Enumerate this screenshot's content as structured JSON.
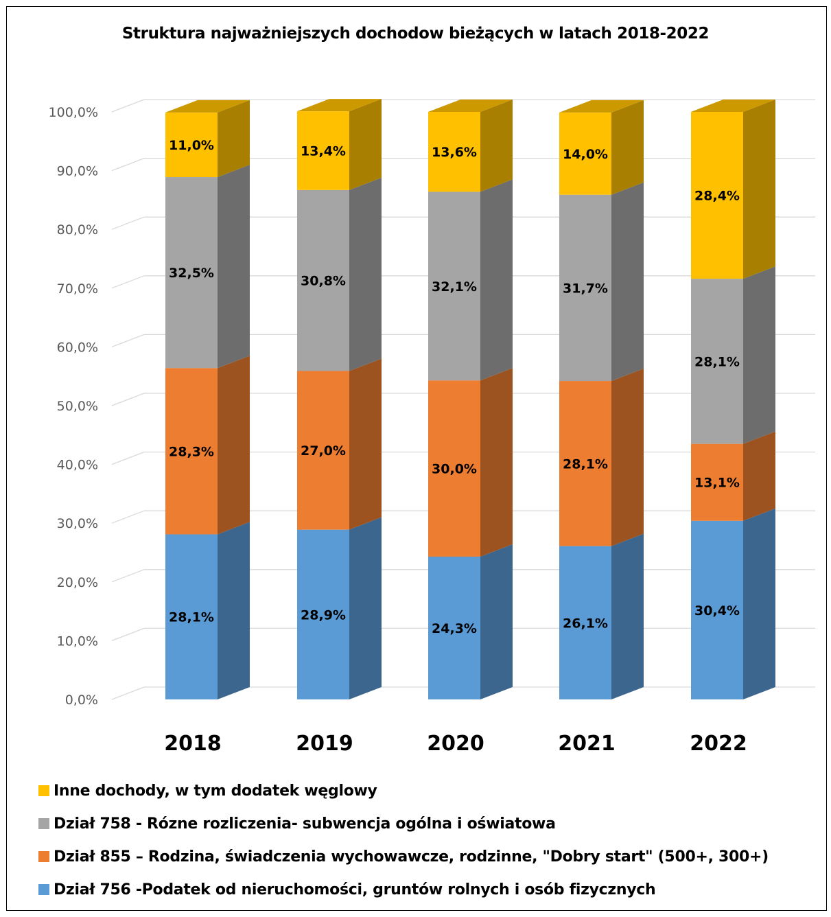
{
  "chart_data": {
    "type": "bar",
    "stacked": true,
    "three_d": true,
    "title": "Struktura najważniejszych dochodow bieżących w latach 2018-2022",
    "categories": [
      "2018",
      "2019",
      "2020",
      "2021",
      "2022"
    ],
    "ylim": [
      0,
      100
    ],
    "y_ticks": [
      "0,0%",
      "10,0%",
      "20,0%",
      "30,0%",
      "40,0%",
      "50,0%",
      "60,0%",
      "70,0%",
      "80,0%",
      "90,0%",
      "100,0%"
    ],
    "grid": true,
    "legend_position": "bottom",
    "series": [
      {
        "name": "Dział 756 -Podatek od nieruchomości, gruntów rolnych i osób fizycznych",
        "color": "#5B9BD5",
        "values": [
          28.1,
          28.9,
          24.3,
          26.1,
          30.4
        ],
        "labels": [
          "28,1%",
          "28,9%",
          "24,3%",
          "26,1%",
          "30,4%"
        ]
      },
      {
        "name": "Dział 855 – Rodzina, świadczenia wychowawcze, rodzinne, \"Dobry start\" (500+, 300+)",
        "color": "#ED7D31",
        "values": [
          28.3,
          27.0,
          30.0,
          28.1,
          13.1
        ],
        "labels": [
          "28,3%",
          "27,0%",
          "30,0%",
          "28,1%",
          "13,1%"
        ]
      },
      {
        "name": "Dział 758 -  Rózne rozliczenia- subwencja ogólna i oświatowa",
        "color": "#A5A5A5",
        "values": [
          32.5,
          30.8,
          32.1,
          31.7,
          28.1
        ],
        "labels": [
          "32,5%",
          "30,8%",
          "32,1%",
          "31,7%",
          "28,1%"
        ]
      },
      {
        "name": "Inne dochody, w tym dodatek węglowy",
        "color": "#FFC000",
        "values": [
          11.0,
          13.4,
          13.6,
          14.0,
          28.4
        ],
        "labels": [
          "11,0%",
          "13,4%",
          "13,6%",
          "14,0%",
          "28,4%"
        ]
      }
    ]
  },
  "legend": {
    "items": [
      {
        "label": "Inne dochody, w tym dodatek węglowy",
        "color": "#FFC000"
      },
      {
        "label": "Dział 758 -  Rózne rozliczenia- subwencja ogólna i oświatowa",
        "color": "#A5A5A5"
      },
      {
        "label": "Dział 855 – Rodzina, świadczenia wychowawcze, rodzinne, \"Dobry start\" (500+, 300+)",
        "color": "#ED7D31"
      },
      {
        "label": "Dział 756 -Podatek od nieruchomości, gruntów rolnych i osób fizycznych",
        "color": "#5B9BD5"
      }
    ]
  }
}
